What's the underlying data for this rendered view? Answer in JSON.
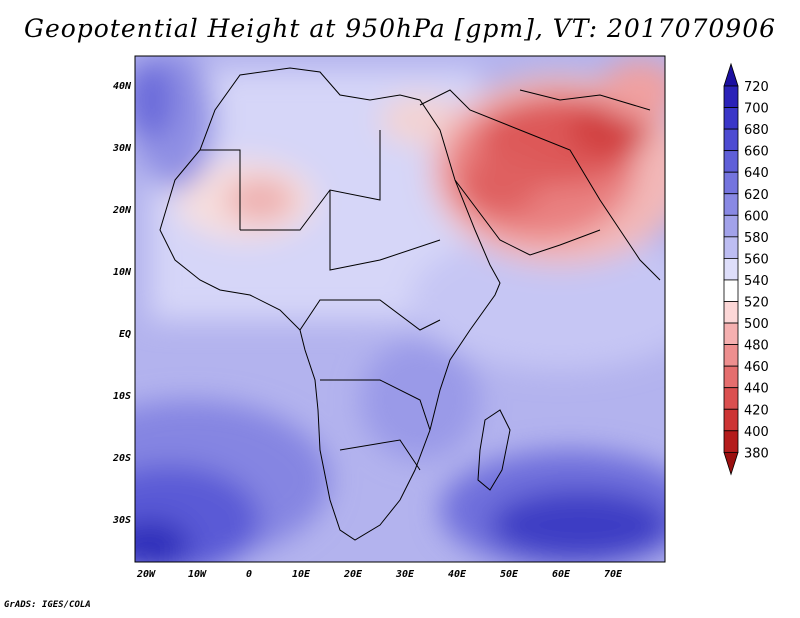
{
  "title": "Geopotential Height at 950hPa [gpm], VT: 2017070906",
  "credit": "GrADS: IGES/COLA",
  "map": {
    "lon_range": [
      -23,
      80
    ],
    "lat_range": [
      -37,
      45
    ],
    "lat_ticks": [
      "40N",
      "30N",
      "20N",
      "10N",
      "EQ",
      "10S",
      "20S",
      "30S"
    ],
    "lon_ticks": [
      "20W",
      "10W",
      "0",
      "10E",
      "20E",
      "30E",
      "40E",
      "50E",
      "60E",
      "70E"
    ]
  },
  "colorbar": {
    "levels": [
      "720",
      "700",
      "680",
      "660",
      "640",
      "620",
      "600",
      "580",
      "560",
      "540",
      "520",
      "500",
      "480",
      "460",
      "440",
      "420",
      "400",
      "380"
    ],
    "colors": [
      "#1c0fa0",
      "#2b22b8",
      "#3a36c8",
      "#4d4bd2",
      "#5f5fd8",
      "#7474de",
      "#8989e4",
      "#a2a2ea",
      "#bdbdf2",
      "#dedefa",
      "#ffffff",
      "#fcd7d7",
      "#f5b0b0",
      "#ee8f8f",
      "#e56e6e",
      "#db5050",
      "#cd3434",
      "#b41c1c",
      "#9a0f0f"
    ]
  }
}
